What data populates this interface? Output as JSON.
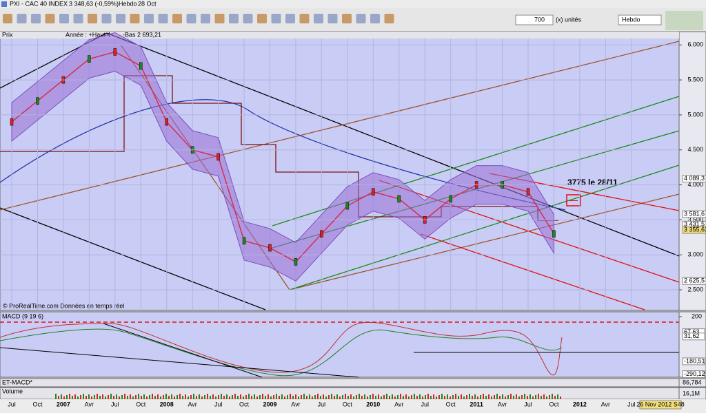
{
  "window": {
    "title": "PXI - CAC 40 INDEX",
    "quote": "3 348,63 (-0,59%)",
    "period": "Hebdo",
    "date": "28 Oct"
  },
  "toolbar": {
    "units_count": "700",
    "units": "(x) unités",
    "period_select": "Hebdo"
  },
  "price_panel": {
    "name": "Prix",
    "legend_high": "Année : +Haut 4",
    "legend_low": "-Bas 2 693,21",
    "ylim": [
      2215,
      6180
    ],
    "yticks": [
      {
        "value": 6000,
        "label": "6.000"
      },
      {
        "value": 5500,
        "label": "5.500"
      },
      {
        "value": 5000,
        "label": "5.000"
      },
      {
        "value": 4500,
        "label": "4.500"
      },
      {
        "value": 4000,
        "label": "4.000"
      },
      {
        "value": 3500,
        "label": "3.500"
      },
      {
        "value": 3000,
        "label": "3.000"
      },
      {
        "value": 2500,
        "label": "2.500"
      }
    ],
    "level_labels": [
      {
        "value": 4089.3,
        "label": "4 089,3"
      },
      {
        "value": 3581.6,
        "label": "3 581,6"
      },
      {
        "value": 3431.5,
        "label": "3 431,5"
      },
      {
        "value": 3355.63,
        "label": "3 355,63"
      },
      {
        "value": 2625.5,
        "label": "2 625,5"
      }
    ],
    "close": [
      4900,
      5200,
      5500,
      5800,
      5900,
      5700,
      4900,
      4500,
      4400,
      3200,
      3100,
      2900,
      3300,
      3700,
      3900,
      3800,
      3500,
      3800,
      4000,
      4000,
      3900,
      3300,
      null,
      null,
      null
    ],
    "target": {
      "value": 3775,
      "label": "3775 le 28/11"
    },
    "source": "© ProRealTime.com  Données en temps réel"
  },
  "macd_panel": {
    "name": "MACD (9 19 6)",
    "ylim": [
      -310,
      230
    ],
    "yticks": [
      200
    ],
    "level_labels": [
      {
        "value": 67.63,
        "label": "67,63"
      },
      {
        "value": 31.62,
        "label": "31,62"
      },
      {
        "value": -180.51,
        "label": "-180,51"
      },
      {
        "value": -290.12,
        "label": "-290,12"
      }
    ]
  },
  "et_macd_panel": {
    "name": "ET-MACD*",
    "level_label": "86,784"
  },
  "volume_panel": {
    "name": "Volume",
    "level_label": "16,1M"
  },
  "x_axis": {
    "labels": [
      "Jul",
      "Oct",
      "2007",
      "Avr",
      "Jul",
      "Oct",
      "2008",
      "Avr",
      "Jul",
      "Oct",
      "2009",
      "Avr",
      "Jul",
      "Oct",
      "2010",
      "Avr",
      "Jul",
      "Oct",
      "2011",
      "Avr",
      "Jul",
      "Oct",
      "2012",
      "Avr",
      "Jul"
    ],
    "cursor_date": "26 Nov 2012 S48"
  }
}
